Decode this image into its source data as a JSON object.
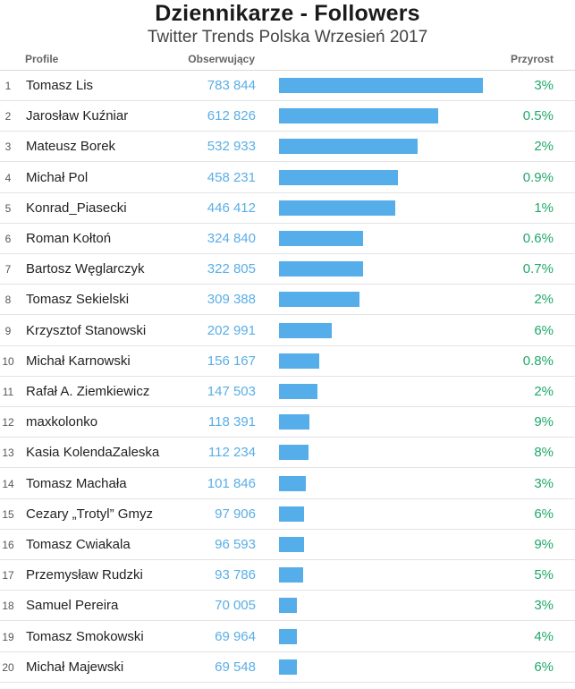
{
  "chart_data": {
    "type": "bar",
    "title": "Dziennikarze - Followers",
    "subtitle": "Twitter Trends Polska Wrzesień 2017",
    "columns": {
      "profile": "Profile",
      "followers": "Obserwujący",
      "growth": "Przyrost"
    },
    "max_value": 783844,
    "rows": [
      {
        "rank": "1",
        "name": "Tomasz Lis",
        "value": 783844,
        "value_label": "783 844",
        "growth": "3%"
      },
      {
        "rank": "2",
        "name": "Jarosław Kuźniar",
        "value": 612826,
        "value_label": "612 826",
        "growth": "0.5%"
      },
      {
        "rank": "3",
        "name": "Mateusz Borek",
        "value": 532933,
        "value_label": "532 933",
        "growth": "2%"
      },
      {
        "rank": "4",
        "name": "Michał Pol",
        "value": 458231,
        "value_label": "458 231",
        "growth": "0.9%"
      },
      {
        "rank": "5",
        "name": "Konrad_Piasecki",
        "value": 446412,
        "value_label": "446 412",
        "growth": "1%"
      },
      {
        "rank": "6",
        "name": "Roman Kołtoń",
        "value": 324840,
        "value_label": "324 840",
        "growth": "0.6%"
      },
      {
        "rank": "7",
        "name": "Bartosz Węglarczyk",
        "value": 322805,
        "value_label": "322 805",
        "growth": "0.7%"
      },
      {
        "rank": "8",
        "name": "Tomasz Sekielski",
        "value": 309388,
        "value_label": "309 388",
        "growth": "2%"
      },
      {
        "rank": "9",
        "name": "Krzysztof Stanowski",
        "value": 202991,
        "value_label": "202 991",
        "growth": "6%"
      },
      {
        "rank": "10",
        "name": "Michał Karnowski",
        "value": 156167,
        "value_label": "156 167",
        "growth": "0.8%"
      },
      {
        "rank": "11",
        "name": "Rafał A. Ziemkiewicz",
        "value": 147503,
        "value_label": "147 503",
        "growth": "2%"
      },
      {
        "rank": "12",
        "name": "maxkolonko",
        "value": 118391,
        "value_label": "118 391",
        "growth": "9%"
      },
      {
        "rank": "13",
        "name": "Kasia KolendaZaleska",
        "value": 112234,
        "value_label": "112 234",
        "growth": "8%"
      },
      {
        "rank": "14",
        "name": "Tomasz Machała",
        "value": 101846,
        "value_label": "101 846",
        "growth": "3%"
      },
      {
        "rank": "15",
        "name": "Cezary „Trotyl” Gmyz",
        "value": 97906,
        "value_label": "97 906",
        "growth": "6%"
      },
      {
        "rank": "16",
        "name": "Tomasz Cwiakala",
        "value": 96593,
        "value_label": "96 593",
        "growth": "9%"
      },
      {
        "rank": "17",
        "name": "Przemysław Rudzki",
        "value": 93786,
        "value_label": "93 786",
        "growth": "5%"
      },
      {
        "rank": "18",
        "name": "Samuel Pereira",
        "value": 70005,
        "value_label": "70 005",
        "growth": "3%"
      },
      {
        "rank": "19",
        "name": "Tomasz Smokowski",
        "value": 69964,
        "value_label": "69 964",
        "growth": "4%"
      },
      {
        "rank": "20",
        "name": "Michał Majewski",
        "value": 69548,
        "value_label": "69 548",
        "growth": "6%"
      }
    ]
  }
}
